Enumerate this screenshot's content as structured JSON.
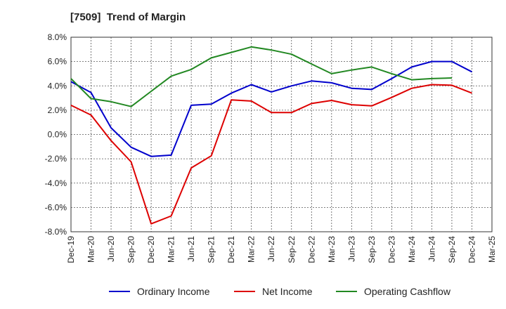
{
  "chart_data": {
    "type": "line",
    "title": "[7509]  Trend of Margin",
    "xlabel": "",
    "ylabel": "",
    "categories": [
      "Dec-19",
      "Mar-20",
      "Jun-20",
      "Sep-20",
      "Dec-20",
      "Mar-21",
      "Jun-21",
      "Sep-21",
      "Dec-21",
      "Mar-22",
      "Jun-22",
      "Sep-22",
      "Dec-22",
      "Mar-23",
      "Jun-23",
      "Sep-23",
      "Dec-23",
      "Mar-24",
      "Jun-24",
      "Sep-24",
      "Dec-24",
      "Mar-25"
    ],
    "ylim": [
      -8.0,
      8.0
    ],
    "yticks": [
      "8.0%",
      "6.0%",
      "4.0%",
      "2.0%",
      "0.0%",
      "-2.0%",
      "-4.0%",
      "-6.0%",
      "-8.0%"
    ],
    "grid": true,
    "legend_position": "bottom",
    "series": [
      {
        "name": "Ordinary Income",
        "color": "#0000cc",
        "values": [
          4.35,
          3.45,
          0.55,
          -1.05,
          -1.8,
          -1.7,
          2.4,
          2.5,
          3.4,
          4.1,
          3.5,
          4.0,
          4.4,
          4.25,
          3.8,
          3.7,
          4.6,
          5.55,
          6.0,
          6.0,
          5.15,
          null
        ]
      },
      {
        "name": "Net Income",
        "color": "#dd0000",
        "values": [
          2.4,
          1.6,
          -0.5,
          -2.25,
          -7.35,
          -6.7,
          -2.75,
          -1.75,
          2.85,
          2.75,
          1.8,
          1.8,
          2.55,
          2.8,
          2.45,
          2.35,
          3.05,
          3.8,
          4.1,
          4.05,
          3.4,
          null
        ]
      },
      {
        "name": "Operating Cashflow",
        "color": "#228822",
        "values": [
          4.6,
          2.95,
          2.7,
          2.3,
          3.55,
          4.8,
          5.35,
          6.3,
          6.75,
          7.2,
          6.95,
          6.6,
          5.8,
          5.0,
          5.3,
          5.55,
          5.0,
          4.5,
          4.6,
          4.65,
          null,
          null
        ]
      }
    ]
  }
}
